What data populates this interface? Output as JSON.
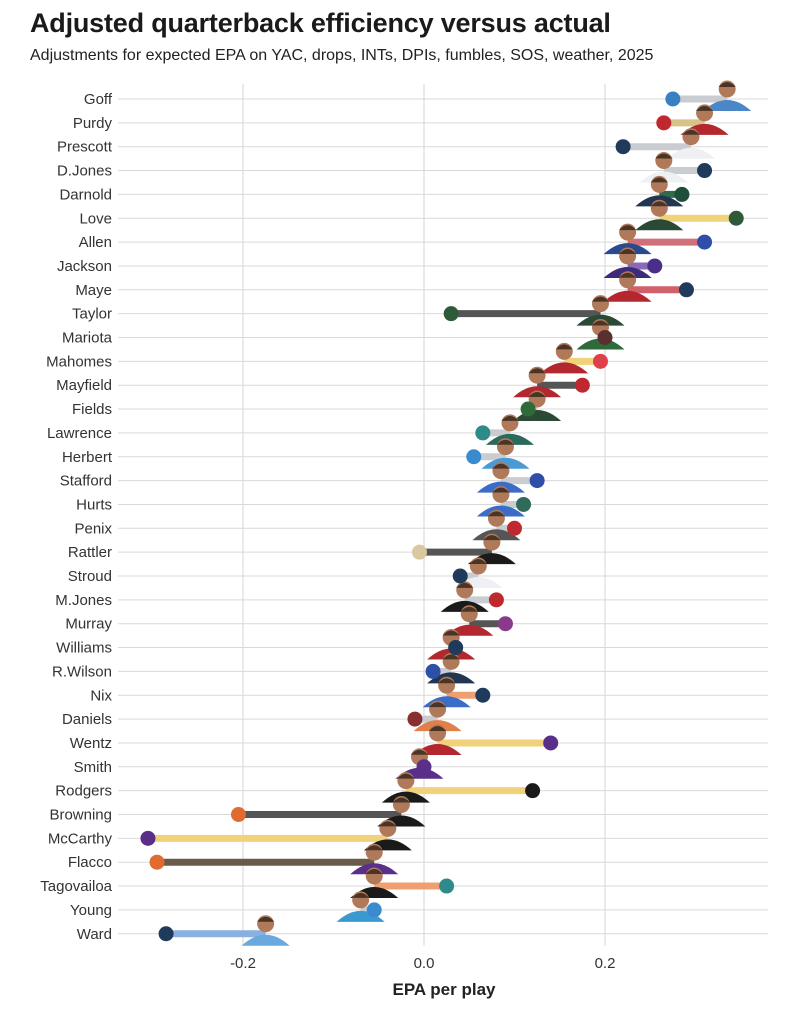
{
  "title": "Adjusted quarterback efficiency versus actual",
  "subtitle": "Adjustments for expected EPA on YAC, drops, INTs, DPIs, fumbles, SOS, weather, 2025",
  "chart_data": {
    "type": "dumbbell",
    "title": "Adjusted quarterback efficiency versus actual",
    "subtitle": "Adjustments for expected EPA on YAC, drops, INTs, DPIs, fumbles, SOS, weather, 2025",
    "xlabel": "EPA per play",
    "ylabel": "",
    "xlim": [
      -0.35,
      0.38
    ],
    "xticks": [
      -0.2,
      0.0,
      0.2
    ],
    "xtick_labels": [
      "-0.2",
      "0.0",
      "0.2"
    ],
    "grid": true,
    "players": [
      {
        "name": "Goff",
        "dot": 0.275,
        "head": 0.335,
        "line": "#c9ccd1",
        "dotColor": "#3a7fc1",
        "jersey": "#4b86c6"
      },
      {
        "name": "Purdy",
        "dot": 0.265,
        "head": 0.31,
        "line": "#d9c28a",
        "dotColor": "#c0282f",
        "jersey": "#b3282e"
      },
      {
        "name": "Prescott",
        "dot": 0.22,
        "head": 0.295,
        "line": "#c9ccd1",
        "dotColor": "#1f3a5a",
        "jersey": "#eef0f3"
      },
      {
        "name": "D.Jones",
        "dot": 0.31,
        "head": 0.265,
        "line": "#c9ccd1",
        "dotColor": "#1f3a5a",
        "jersey": "#eef0f3"
      },
      {
        "name": "Darnold",
        "dot": 0.285,
        "head": 0.26,
        "line": "#2f6a4a",
        "dotColor": "#1f4f3a",
        "jersey": "#23364f"
      },
      {
        "name": "Love",
        "dot": 0.345,
        "head": 0.26,
        "line": "#f0d27a",
        "dotColor": "#2f5a3a",
        "jersey": "#2b4a35"
      },
      {
        "name": "Allen",
        "dot": 0.31,
        "head": 0.225,
        "line": "#d07078",
        "dotColor": "#2f4ea8",
        "jersey": "#2b4a8c"
      },
      {
        "name": "Jackson",
        "dot": 0.255,
        "head": 0.225,
        "line": "#8a6ab8",
        "dotColor": "#4a2f8a",
        "jersey": "#3b2b78"
      },
      {
        "name": "Maye",
        "dot": 0.29,
        "head": 0.225,
        "line": "#d0606a",
        "dotColor": "#1f3a5a",
        "jersey": "#b3282e"
      },
      {
        "name": "Taylor",
        "dot": 0.03,
        "head": 0.195,
        "line": "#555555",
        "dotColor": "#2f5a3a",
        "jersey": "#2b4a35"
      },
      {
        "name": "Mariota",
        "dot": 0.2,
        "head": 0.195,
        "line": "#c9ccd1",
        "dotColor": "#5a2f2f",
        "jersey": "#2f6a3a"
      },
      {
        "name": "Mahomes",
        "dot": 0.195,
        "head": 0.155,
        "line": "#f0d27a",
        "dotColor": "#e0404a",
        "jersey": "#b3282e"
      },
      {
        "name": "Mayfield",
        "dot": 0.175,
        "head": 0.125,
        "line": "#555555",
        "dotColor": "#c0282f",
        "jersey": "#b3282e"
      },
      {
        "name": "Fields",
        "dot": 0.115,
        "head": 0.125,
        "line": "#c9ccd1",
        "dotColor": "#2f6a3a",
        "jersey": "#2b4a35"
      },
      {
        "name": "Lawrence",
        "dot": 0.065,
        "head": 0.095,
        "line": "#c9ccd1",
        "dotColor": "#2f8a8a",
        "jersey": "#2b6a5a"
      },
      {
        "name": "Herbert",
        "dot": 0.055,
        "head": 0.09,
        "line": "#c9ccd1",
        "dotColor": "#3a8ad0",
        "jersey": "#4b9ad6"
      },
      {
        "name": "Stafford",
        "dot": 0.125,
        "head": 0.085,
        "line": "#c9ccd1",
        "dotColor": "#2f4ea8",
        "jersey": "#3b6cc8"
      },
      {
        "name": "Hurts",
        "dot": 0.11,
        "head": 0.085,
        "line": "#c9ccd1",
        "dotColor": "#2f6a5a",
        "jersey": "#3b6cc8"
      },
      {
        "name": "Penix",
        "dot": 0.1,
        "head": 0.08,
        "line": "#c9ccd1",
        "dotColor": "#c0282f",
        "jersey": "#555555"
      },
      {
        "name": "Rattler",
        "dot": -0.005,
        "head": 0.075,
        "line": "#555555",
        "dotColor": "#d9c8a0",
        "jersey": "#1a1a1a"
      },
      {
        "name": "Stroud",
        "dot": 0.04,
        "head": 0.06,
        "line": "#c9ccd1",
        "dotColor": "#1f3a5a",
        "jersey": "#eef0f3"
      },
      {
        "name": "M.Jones",
        "dot": 0.08,
        "head": 0.045,
        "line": "#c9ccd1",
        "dotColor": "#c0282f",
        "jersey": "#1a1a1a"
      },
      {
        "name": "Murray",
        "dot": 0.09,
        "head": 0.05,
        "line": "#555555",
        "dotColor": "#8a3a8a",
        "jersey": "#b3282e"
      },
      {
        "name": "Williams",
        "dot": 0.035,
        "head": 0.03,
        "line": "#c9ccd1",
        "dotColor": "#1f3a5a",
        "jersey": "#b3282e"
      },
      {
        "name": "R.Wilson",
        "dot": 0.01,
        "head": 0.03,
        "line": "#c9ccd1",
        "dotColor": "#2f4ea8",
        "jersey": "#23364f"
      },
      {
        "name": "Nix",
        "dot": 0.065,
        "head": 0.025,
        "line": "#f0a070",
        "dotColor": "#1f3a5a",
        "jersey": "#3b6cc8"
      },
      {
        "name": "Daniels",
        "dot": -0.01,
        "head": 0.015,
        "line": "#c9ccd1",
        "dotColor": "#8a2f2f",
        "jersey": "#e0804a"
      },
      {
        "name": "Wentz",
        "dot": 0.14,
        "head": 0.015,
        "line": "#f0d27a",
        "dotColor": "#5a2f8a",
        "jersey": "#b3282e"
      },
      {
        "name": "Smith",
        "dot": 0.0,
        "head": -0.005,
        "line": "#c9ccd1",
        "dotColor": "#5a2f8a",
        "jersey": "#5a2f8a"
      },
      {
        "name": "Rodgers",
        "dot": 0.12,
        "head": -0.02,
        "line": "#f0d27a",
        "dotColor": "#1a1a1a",
        "jersey": "#1a1a1a"
      },
      {
        "name": "Browning",
        "dot": -0.205,
        "head": -0.025,
        "line": "#555555",
        "dotColor": "#e06a30",
        "jersey": "#1a1a1a"
      },
      {
        "name": "McCarthy",
        "dot": -0.305,
        "head": -0.04,
        "line": "#f0d27a",
        "dotColor": "#5a2f8a",
        "jersey": "#1a1a1a"
      },
      {
        "name": "Flacco",
        "dot": -0.295,
        "head": -0.055,
        "line": "#6a5a4a",
        "dotColor": "#e06a30",
        "jersey": "#5a2f8a"
      },
      {
        "name": "Tagovailoa",
        "dot": 0.025,
        "head": -0.055,
        "line": "#f0a070",
        "dotColor": "#2f8a8a",
        "jersey": "#1a1a1a"
      },
      {
        "name": "Young",
        "dot": -0.055,
        "head": -0.07,
        "line": "#c9ccd1",
        "dotColor": "#3a8ad0",
        "jersey": "#3a9ad0"
      },
      {
        "name": "Ward",
        "dot": -0.285,
        "head": -0.175,
        "line": "#8ab0e0",
        "dotColor": "#1f3a5a",
        "jersey": "#6aa8e0"
      }
    ]
  }
}
